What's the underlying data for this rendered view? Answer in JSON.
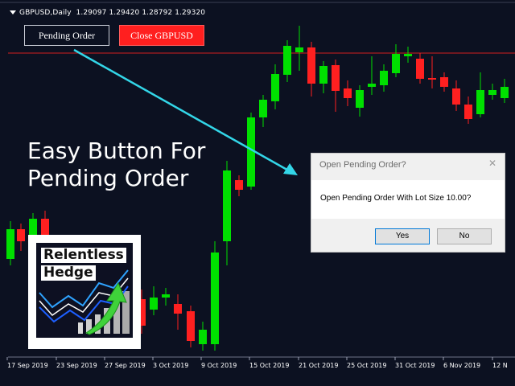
{
  "chart": {
    "title": "GBPUSD,Daily  1.29097 1.29420 1.28792 1.29320",
    "x_labels": [
      "17 Sep 2019",
      "23 Sep 2019",
      "27 Sep 2019",
      "3 Oct 2019",
      "9 Oct 2019",
      "15 Oct 2019",
      "21 Oct 2019",
      "25 Oct 2019",
      "31 Oct 2019",
      "6 Nov 2019",
      "12 N"
    ],
    "colors": {
      "bull": "#00e000",
      "bear": "#ff2020",
      "background": "#0c1121",
      "hline": "#d21f1f",
      "arrow": "#33d6e8"
    }
  },
  "toolbar": {
    "pending_label": "Pending Order",
    "close_label": "Close GBPUSD"
  },
  "caption": "Easy Button For\nPending Order",
  "logo": {
    "line1": "Relentless",
    "line2": "Hedge"
  },
  "dialog": {
    "title": "Open Pending Order?",
    "message": "Open Pending Order With Lot Size 10.00?",
    "yes_label": "Yes",
    "no_label": "No"
  }
}
